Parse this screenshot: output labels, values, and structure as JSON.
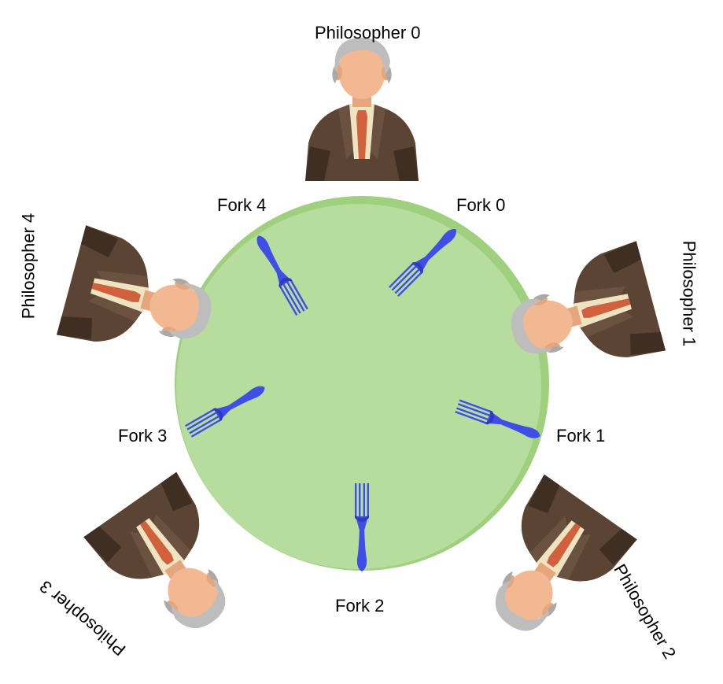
{
  "philosophers": [
    {
      "label": "Philosopher 0"
    },
    {
      "label": "Philosopher 1"
    },
    {
      "label": "Philosopher 2"
    },
    {
      "label": "Philosopher 3"
    },
    {
      "label": "Philosopher 4"
    }
  ],
  "forks": [
    {
      "label": "Fork 0"
    },
    {
      "label": "Fork 1"
    },
    {
      "label": "Fork 2"
    },
    {
      "label": "Fork 3"
    },
    {
      "label": "Fork 4"
    }
  ],
  "colors": {
    "table_fill": "#b7dd9e",
    "table_rim": "#9fd07e",
    "fork": "#3f4ee6",
    "fork_dark": "#2f3bc4",
    "suit": "#5b4433",
    "suit_dark": "#3f2e22",
    "shirt": "#efe4c2",
    "tie": "#d0613c",
    "skin": "#f2b891",
    "hair": "#bdbdbd"
  },
  "icons": {
    "philosopher": "philosopher-icon",
    "fork": "fork-icon"
  }
}
